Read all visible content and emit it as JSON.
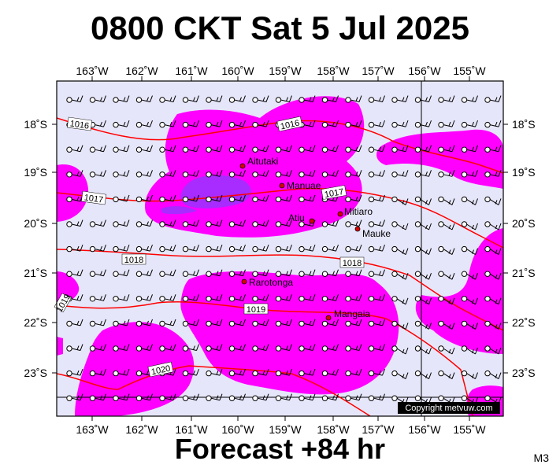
{
  "title": "0800 CKT Sat 5 Jul 2025",
  "footer": "Forecast +84 hr",
  "model_code": "M3",
  "copyright": "Copyright metvuw.com",
  "colors": {
    "background": "#e6e6fa",
    "precip_light": "#ff00ff",
    "precip_heavy": "#9933ff",
    "isobar": "#ff0000",
    "place_marker": "#dd0000"
  },
  "lon_labels": [
    "163˚W",
    "162˚W",
    "161˚W",
    "160˚W",
    "159˚W",
    "158˚W",
    "157˚W",
    "156˚W",
    "155˚W"
  ],
  "lat_labels": [
    "18˚S",
    "19˚S",
    "20˚S",
    "21˚S",
    "22˚S",
    "23˚S"
  ],
  "places": [
    {
      "name": "Aitutaki"
    },
    {
      "name": "Manuae"
    },
    {
      "name": "Mitiaro"
    },
    {
      "name": "Atiu"
    },
    {
      "name": "Mauke"
    },
    {
      "name": "Rarotonga"
    },
    {
      "name": "Mangaia"
    }
  ],
  "isobars": [
    "1016",
    "1016",
    "1017",
    "1017",
    "1018",
    "1018",
    "1019",
    "1019",
    "1020"
  ]
}
